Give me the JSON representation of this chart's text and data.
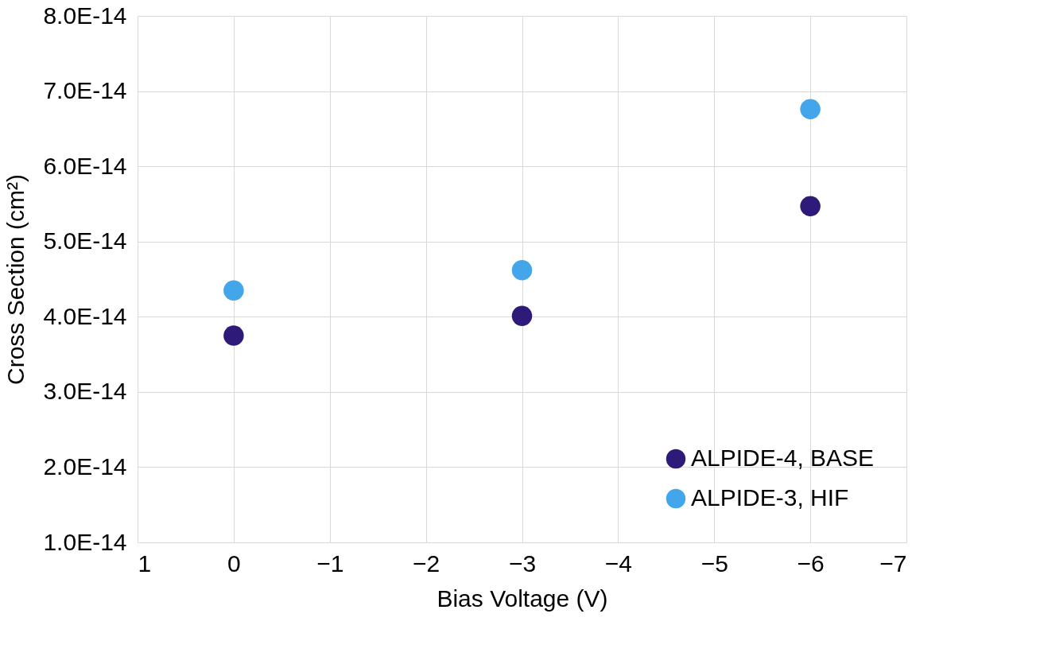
{
  "chart_data": {
    "type": "scatter",
    "xlabel": "Bias Voltage (V)",
    "ylabel": "Cross Section (cm²)",
    "x": [
      0,
      -3,
      -6
    ],
    "series": [
      {
        "name": "ALPIDE-4, BASE",
        "color": "#2e1a78",
        "values": [
          3.75e-14,
          4.01e-14,
          5.47e-14
        ]
      },
      {
        "name": "ALPIDE-3, HIF",
        "color": "#43a6ea",
        "values": [
          4.35e-14,
          4.62e-14,
          6.76e-14
        ]
      }
    ],
    "xlim": [
      1,
      -7
    ],
    "xticks": [
      1,
      0,
      -1,
      -2,
      -3,
      -4,
      -5,
      -6,
      -7
    ],
    "ylim": [
      1e-14,
      8e-14
    ],
    "yticks": [
      {
        "value": 1e-14,
        "label": "1.0E-14"
      },
      {
        "value": 2e-14,
        "label": "2.0E-14"
      },
      {
        "value": 3e-14,
        "label": "3.0E-14"
      },
      {
        "value": 4e-14,
        "label": "4.0E-14"
      },
      {
        "value": 5e-14,
        "label": "5.0E-14"
      },
      {
        "value": 6e-14,
        "label": "6.0E-14"
      },
      {
        "value": 7e-14,
        "label": "7.0E-14"
      },
      {
        "value": 8e-14,
        "label": "8.0E-14"
      }
    ],
    "grid": true,
    "legend": "bottom right",
    "marker": "circle"
  }
}
